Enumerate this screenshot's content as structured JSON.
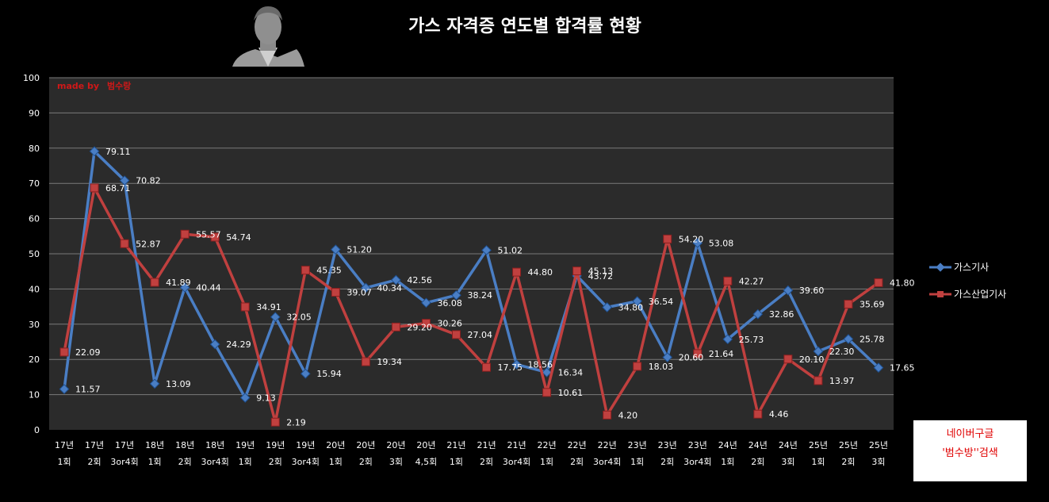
{
  "chart_data": {
    "type": "line",
    "title": "가스 자격증 연도별 합격률 현황",
    "watermark_prefix": "made by",
    "watermark_name": "범수랑",
    "xlabel": "",
    "ylabel": "",
    "ylim": [
      0,
      100
    ],
    "yticks": [
      0,
      10,
      20,
      30,
      40,
      50,
      60,
      70,
      80,
      90,
      100
    ],
    "grid": true,
    "legend_position": "right",
    "categories": [
      [
        "17년",
        "1회"
      ],
      [
        "17년",
        "2회"
      ],
      [
        "17년",
        "3or4회"
      ],
      [
        "18년",
        "1회"
      ],
      [
        "18년",
        "2회"
      ],
      [
        "18년",
        "3or4회"
      ],
      [
        "19년",
        "1회"
      ],
      [
        "19년",
        "2회"
      ],
      [
        "19년",
        "3or4회"
      ],
      [
        "20년",
        "1회"
      ],
      [
        "20년",
        "2회"
      ],
      [
        "20년",
        "3회"
      ],
      [
        "20년",
        "4,5회"
      ],
      [
        "21년",
        "1회"
      ],
      [
        "21년",
        "2회"
      ],
      [
        "21년",
        "3or4회"
      ],
      [
        "22년",
        "1회"
      ],
      [
        "22년",
        "2회"
      ],
      [
        "22년",
        "3or4회"
      ],
      [
        "23년",
        "1회"
      ],
      [
        "23년",
        "2회"
      ],
      [
        "23년",
        "3or4회"
      ],
      [
        "24년",
        "1회"
      ],
      [
        "24년",
        "2회"
      ],
      [
        "24년",
        "3회"
      ],
      [
        "25년",
        "1회"
      ],
      [
        "25년",
        "2회"
      ],
      [
        "25년",
        "3회"
      ]
    ],
    "series": [
      {
        "name": "가스기사",
        "color": "#4a7ec4",
        "marker": "diamond",
        "values": [
          11.57,
          79.11,
          70.82,
          13.09,
          40.44,
          24.29,
          9.13,
          32.05,
          15.94,
          51.2,
          40.34,
          42.56,
          36.08,
          38.24,
          51.02,
          18.56,
          16.34,
          43.72,
          34.8,
          36.54,
          20.6,
          53.08,
          25.73,
          32.86,
          39.6,
          22.3,
          25.78,
          17.65
        ],
        "labels": [
          "11.57",
          "79.11",
          "70.82",
          "13.09",
          "40.44",
          "24.29",
          "9.13",
          "32.05",
          "15.94",
          "51.20",
          "40.34",
          "42.56",
          "36.08",
          "38.24",
          "51.02",
          "18.56",
          "16.34",
          "43.72",
          "34.80",
          "36.54",
          "20.60",
          "53.08",
          "25.73",
          "32.86",
          "39.60",
          "22.30",
          "25.78",
          "17.65"
        ]
      },
      {
        "name": "가스산업기사",
        "color": "#c0403f",
        "marker": "square",
        "values": [
          22.09,
          68.71,
          52.87,
          41.89,
          55.57,
          54.74,
          34.91,
          2.19,
          45.35,
          39.07,
          19.34,
          29.2,
          30.26,
          27.04,
          17.75,
          44.8,
          10.61,
          45.13,
          4.2,
          18.03,
          54.2,
          21.64,
          42.27,
          4.46,
          20.1,
          13.97,
          35.69,
          41.8
        ],
        "labels": [
          "22.09",
          "68.71",
          "52.87",
          "41.89",
          "55.57",
          "54.74",
          "34.91",
          "2.19",
          "45.35",
          "39.07",
          "19.34",
          "29.20",
          "30.26",
          "27.04",
          "17.75",
          "44.80",
          "10.61",
          "45.13",
          "4.20",
          "18.03",
          "54.20",
          "21.64",
          "42.27",
          "4.46",
          "20.10",
          "13.97",
          "35.69",
          "41.80"
        ]
      }
    ]
  },
  "search_note": {
    "line1": "네이버구글",
    "line2": "'범수방''검색"
  }
}
